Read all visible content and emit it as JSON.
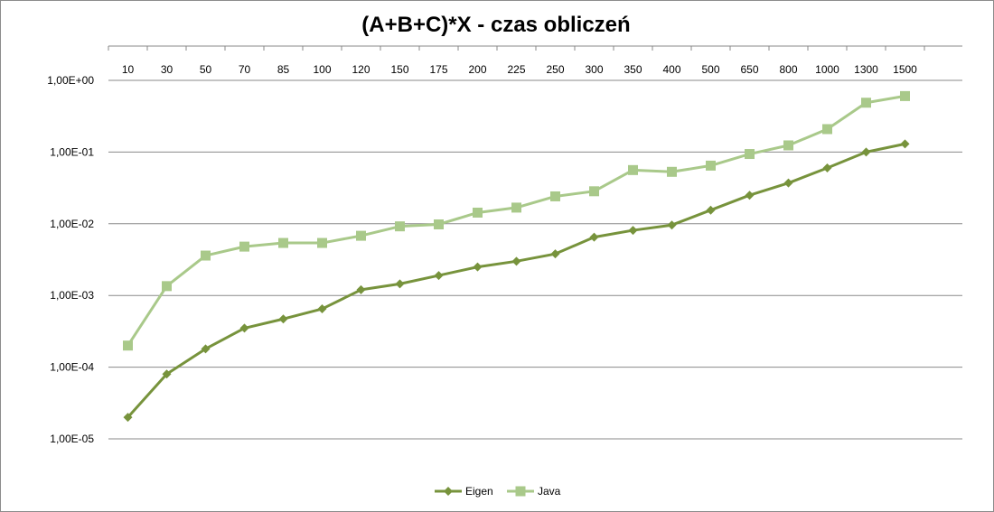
{
  "chart_data": {
    "type": "line",
    "title": "(A+B+C)*X - czas obliczeń",
    "xlabel": "",
    "ylabel": "",
    "y_scale": "log",
    "ylim": [
      1e-05,
      1
    ],
    "y_tick_values": [
      1,
      0.1,
      0.01,
      0.001,
      0.0001,
      1e-05
    ],
    "y_tick_labels": [
      "1,00E+00",
      "1,00E-01",
      "1,00E-02",
      "1,00E-03",
      "1,00E-04",
      "1,00E-05"
    ],
    "categories": [
      "10",
      "30",
      "50",
      "70",
      "85",
      "100",
      "120",
      "150",
      "175",
      "200",
      "225",
      "250",
      "300",
      "350",
      "400",
      "500",
      "650",
      "800",
      "1000",
      "1300",
      "1500"
    ],
    "grid": true,
    "legend_position": "bottom",
    "series": [
      {
        "name": "Eigen",
        "color": "#77933c",
        "marker": "diamond",
        "values": [
          2e-05,
          8e-05,
          0.00018,
          0.00035,
          0.00047,
          0.00065,
          0.0012,
          0.00145,
          0.0019,
          0.0025,
          0.003,
          0.0038,
          0.0065,
          0.0081,
          0.0096,
          0.0155,
          0.025,
          0.037,
          0.06,
          0.1,
          0.13
        ]
      },
      {
        "name": "Java",
        "color": "#a9c98a",
        "marker": "square",
        "values": [
          0.0002,
          0.00135,
          0.0036,
          0.0048,
          0.0054,
          0.0054,
          0.0068,
          0.0092,
          0.0098,
          0.0143,
          0.0168,
          0.0241,
          0.0284,
          0.0561,
          0.053,
          0.0647,
          0.094,
          0.124,
          0.209,
          0.488,
          0.604
        ]
      }
    ]
  }
}
